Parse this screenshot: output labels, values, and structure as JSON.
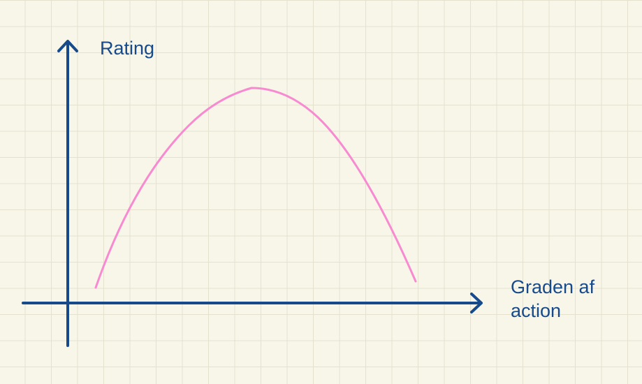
{
  "diagram": {
    "y_axis_label": "Rating",
    "x_axis_label_lines": [
      "Graden af",
      "action"
    ],
    "axis_color": "#174a8a",
    "curve_color": "#f78ad0",
    "background_color": "#f8f6e9",
    "grid_color": "#e4e1cf"
  }
}
